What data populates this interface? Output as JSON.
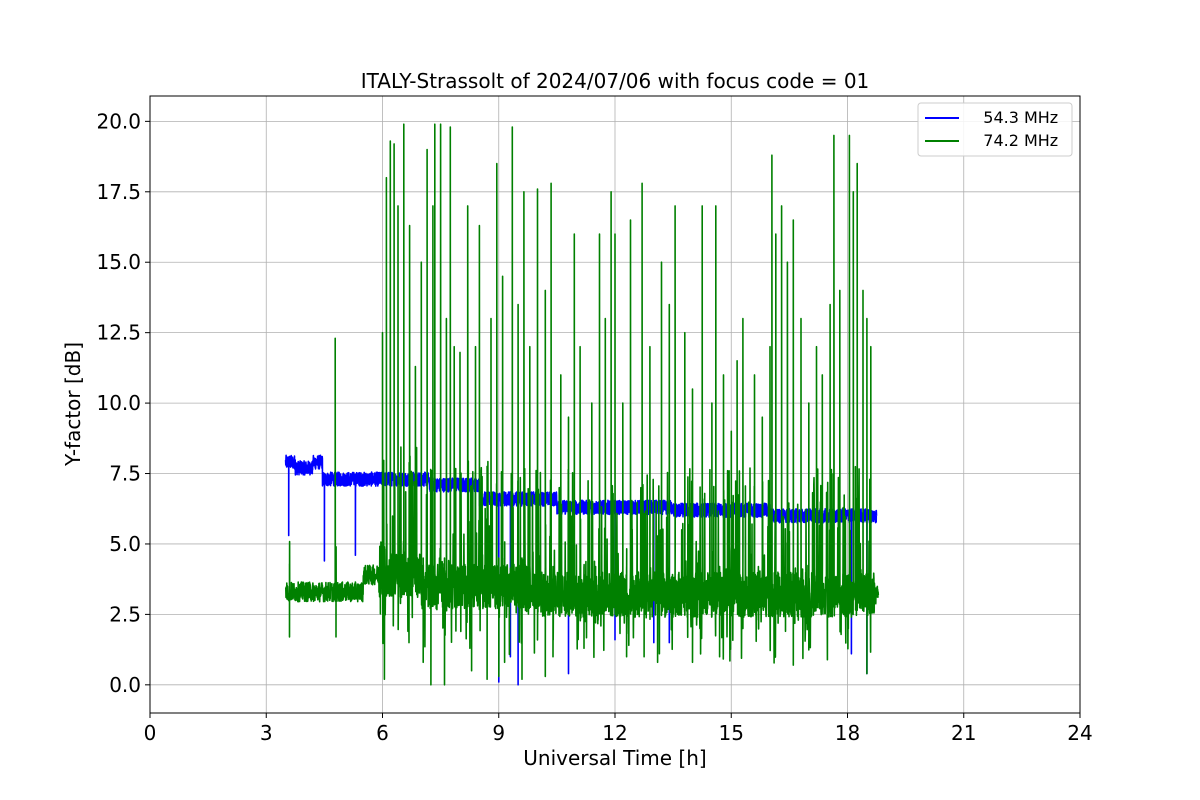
{
  "chart_data": {
    "type": "line",
    "title": "ITALY-Strassolt of 2024/07/06 with focus code = 01",
    "xlabel": "Universal Time [h]",
    "ylabel": "Y-factor [dB]",
    "xlim": [
      0,
      24
    ],
    "ylim": [
      -1.0,
      20.9
    ],
    "xticks": [
      0,
      3,
      6,
      9,
      12,
      15,
      18,
      21,
      24
    ],
    "yticks": [
      0.0,
      2.5,
      5.0,
      7.5,
      10.0,
      12.5,
      15.0,
      17.5,
      20.0
    ],
    "xtick_labels": [
      "0",
      "3",
      "6",
      "9",
      "12",
      "15",
      "18",
      "21",
      "24"
    ],
    "ytick_labels": [
      "0.0",
      "2.5",
      "5.0",
      "7.5",
      "10.0",
      "12.5",
      "15.0",
      "17.5",
      "20.0"
    ],
    "grid": true,
    "legend_position": "top-right",
    "series": [
      {
        "name": "   54.3 MHz",
        "color": "#0000ff",
        "x_range": [
          3.5,
          18.75
        ],
        "segments": [
          {
            "x": [
              3.5,
              3.75
            ],
            "baseline": 7.9
          },
          {
            "x": [
              3.75,
              4.2
            ],
            "baseline": 7.7
          },
          {
            "x": [
              4.2,
              4.45
            ],
            "baseline": 7.9
          },
          {
            "x": [
              4.45,
              4.8
            ],
            "baseline": 7.3
          },
          {
            "x": [
              4.8,
              7.2
            ],
            "baseline": 7.3
          },
          {
            "x": [
              7.2,
              8.5
            ],
            "baseline": 7.1
          },
          {
            "x": [
              8.5,
              10.5
            ],
            "baseline": 6.6
          },
          {
            "x": [
              10.5,
              13.5
            ],
            "baseline": 6.3
          },
          {
            "x": [
              13.5,
              16.0
            ],
            "baseline": 6.2
          },
          {
            "x": [
              16.0,
              18.75
            ],
            "baseline": 6.0
          }
        ],
        "dips": [
          {
            "x": 3.58,
            "y": 5.3
          },
          {
            "x": 4.5,
            "y": 4.4
          },
          {
            "x": 5.3,
            "y": 4.6
          },
          {
            "x": 9.0,
            "y": 0.1
          },
          {
            "x": 9.3,
            "y": 1.0
          },
          {
            "x": 9.5,
            "y": 0.0
          },
          {
            "x": 10.8,
            "y": 0.4
          },
          {
            "x": 12.0,
            "y": 1.6
          },
          {
            "x": 13.0,
            "y": 1.5
          },
          {
            "x": 13.4,
            "y": 1.5
          },
          {
            "x": 18.1,
            "y": 1.1
          },
          {
            "x": 18.5,
            "y": 0.4
          }
        ]
      },
      {
        "name": "   74.2 MHz",
        "color": "#008000",
        "x_range": [
          3.5,
          18.8
        ],
        "baselines": [
          {
            "x": [
              3.5,
              5.5
            ],
            "y": 3.3
          },
          {
            "x": [
              5.5,
              7.0
            ],
            "y": 3.9
          },
          {
            "x": [
              7.0,
              10.0
            ],
            "y": 3.5
          },
          {
            "x": [
              10.0,
              18.8
            ],
            "y": 3.2
          }
        ],
        "peaks": [
          {
            "x": 4.78,
            "y": 12.3
          },
          {
            "x": 6.0,
            "y": 12.5
          },
          {
            "x": 6.1,
            "y": 18.0
          },
          {
            "x": 6.2,
            "y": 19.3
          },
          {
            "x": 6.3,
            "y": 19.2
          },
          {
            "x": 6.4,
            "y": 17.0
          },
          {
            "x": 6.55,
            "y": 19.9
          },
          {
            "x": 6.7,
            "y": 16.3
          },
          {
            "x": 6.85,
            "y": 11.3
          },
          {
            "x": 7.0,
            "y": 15.0
          },
          {
            "x": 7.15,
            "y": 19.0
          },
          {
            "x": 7.3,
            "y": 17.0
          },
          {
            "x": 7.35,
            "y": 19.9
          },
          {
            "x": 7.5,
            "y": 19.9
          },
          {
            "x": 7.65,
            "y": 13.0
          },
          {
            "x": 7.75,
            "y": 19.8
          },
          {
            "x": 7.85,
            "y": 12.0
          },
          {
            "x": 8.0,
            "y": 11.8
          },
          {
            "x": 8.2,
            "y": 17.0
          },
          {
            "x": 8.4,
            "y": 12.0
          },
          {
            "x": 8.5,
            "y": 16.3
          },
          {
            "x": 8.8,
            "y": 13.0
          },
          {
            "x": 8.95,
            "y": 18.5
          },
          {
            "x": 9.1,
            "y": 14.5
          },
          {
            "x": 9.35,
            "y": 19.8
          },
          {
            "x": 9.5,
            "y": 13.5
          },
          {
            "x": 9.65,
            "y": 17.5
          },
          {
            "x": 9.8,
            "y": 12.0
          },
          {
            "x": 10.0,
            "y": 17.6
          },
          {
            "x": 10.2,
            "y": 14.0
          },
          {
            "x": 10.35,
            "y": 17.8
          },
          {
            "x": 10.6,
            "y": 11.0
          },
          {
            "x": 10.8,
            "y": 9.5
          },
          {
            "x": 10.95,
            "y": 16.0
          },
          {
            "x": 11.1,
            "y": 12.0
          },
          {
            "x": 11.4,
            "y": 10.0
          },
          {
            "x": 11.6,
            "y": 16.0
          },
          {
            "x": 11.75,
            "y": 13.0
          },
          {
            "x": 11.9,
            "y": 17.5
          },
          {
            "x": 12.0,
            "y": 16.0
          },
          {
            "x": 12.2,
            "y": 10.0
          },
          {
            "x": 12.4,
            "y": 16.5
          },
          {
            "x": 12.7,
            "y": 17.8
          },
          {
            "x": 12.9,
            "y": 12.0
          },
          {
            "x": 13.2,
            "y": 15.0
          },
          {
            "x": 13.4,
            "y": 13.5
          },
          {
            "x": 13.55,
            "y": 17.0
          },
          {
            "x": 13.8,
            "y": 12.5
          },
          {
            "x": 14.0,
            "y": 10.5
          },
          {
            "x": 14.25,
            "y": 17.0
          },
          {
            "x": 14.5,
            "y": 10.0
          },
          {
            "x": 14.6,
            "y": 17.0
          },
          {
            "x": 14.8,
            "y": 11.0
          },
          {
            "x": 15.0,
            "y": 9.0
          },
          {
            "x": 15.15,
            "y": 11.5
          },
          {
            "x": 15.3,
            "y": 13.0
          },
          {
            "x": 15.6,
            "y": 11.0
          },
          {
            "x": 15.8,
            "y": 9.5
          },
          {
            "x": 16.0,
            "y": 12.0
          },
          {
            "x": 16.05,
            "y": 18.8
          },
          {
            "x": 16.15,
            "y": 16.0
          },
          {
            "x": 16.3,
            "y": 17.0
          },
          {
            "x": 16.45,
            "y": 15.0
          },
          {
            "x": 16.6,
            "y": 16.5
          },
          {
            "x": 16.8,
            "y": 13.0
          },
          {
            "x": 17.0,
            "y": 10.0
          },
          {
            "x": 17.2,
            "y": 12.0
          },
          {
            "x": 17.35,
            "y": 11.0
          },
          {
            "x": 17.55,
            "y": 13.5
          },
          {
            "x": 17.65,
            "y": 19.5
          },
          {
            "x": 17.8,
            "y": 14.0
          },
          {
            "x": 18.05,
            "y": 19.5
          },
          {
            "x": 18.15,
            "y": 17.5
          },
          {
            "x": 18.25,
            "y": 18.5
          },
          {
            "x": 18.4,
            "y": 14.0
          },
          {
            "x": 18.5,
            "y": 13.0
          },
          {
            "x": 18.6,
            "y": 12.0
          }
        ],
        "dips": [
          {
            "x": 3.6,
            "y": 1.7
          },
          {
            "x": 4.8,
            "y": 1.7
          },
          {
            "x": 6.05,
            "y": 0.2
          },
          {
            "x": 7.05,
            "y": 0.8
          },
          {
            "x": 7.25,
            "y": 0.0
          },
          {
            "x": 7.6,
            "y": 0.0
          },
          {
            "x": 8.3,
            "y": 0.5
          },
          {
            "x": 8.7,
            "y": 0.2
          },
          {
            "x": 9.0,
            "y": 0.3
          },
          {
            "x": 9.15,
            "y": 0.8
          },
          {
            "x": 9.6,
            "y": 0.2
          },
          {
            "x": 10.2,
            "y": 0.3
          },
          {
            "x": 10.4,
            "y": 1.0
          },
          {
            "x": 11.2,
            "y": 1.3
          },
          {
            "x": 11.5,
            "y": 2.2
          },
          {
            "x": 12.3,
            "y": 1.0
          },
          {
            "x": 12.75,
            "y": 1.0
          },
          {
            "x": 13.1,
            "y": 0.8
          },
          {
            "x": 14.0,
            "y": 0.8
          },
          {
            "x": 14.7,
            "y": 1.0
          },
          {
            "x": 15.3,
            "y": 2.0
          },
          {
            "x": 15.7,
            "y": 2.3
          },
          {
            "x": 16.4,
            "y": 1.9
          },
          {
            "x": 16.6,
            "y": 0.7
          },
          {
            "x": 17.9,
            "y": 2.5
          },
          {
            "x": 18.5,
            "y": 0.4
          }
        ]
      }
    ]
  }
}
